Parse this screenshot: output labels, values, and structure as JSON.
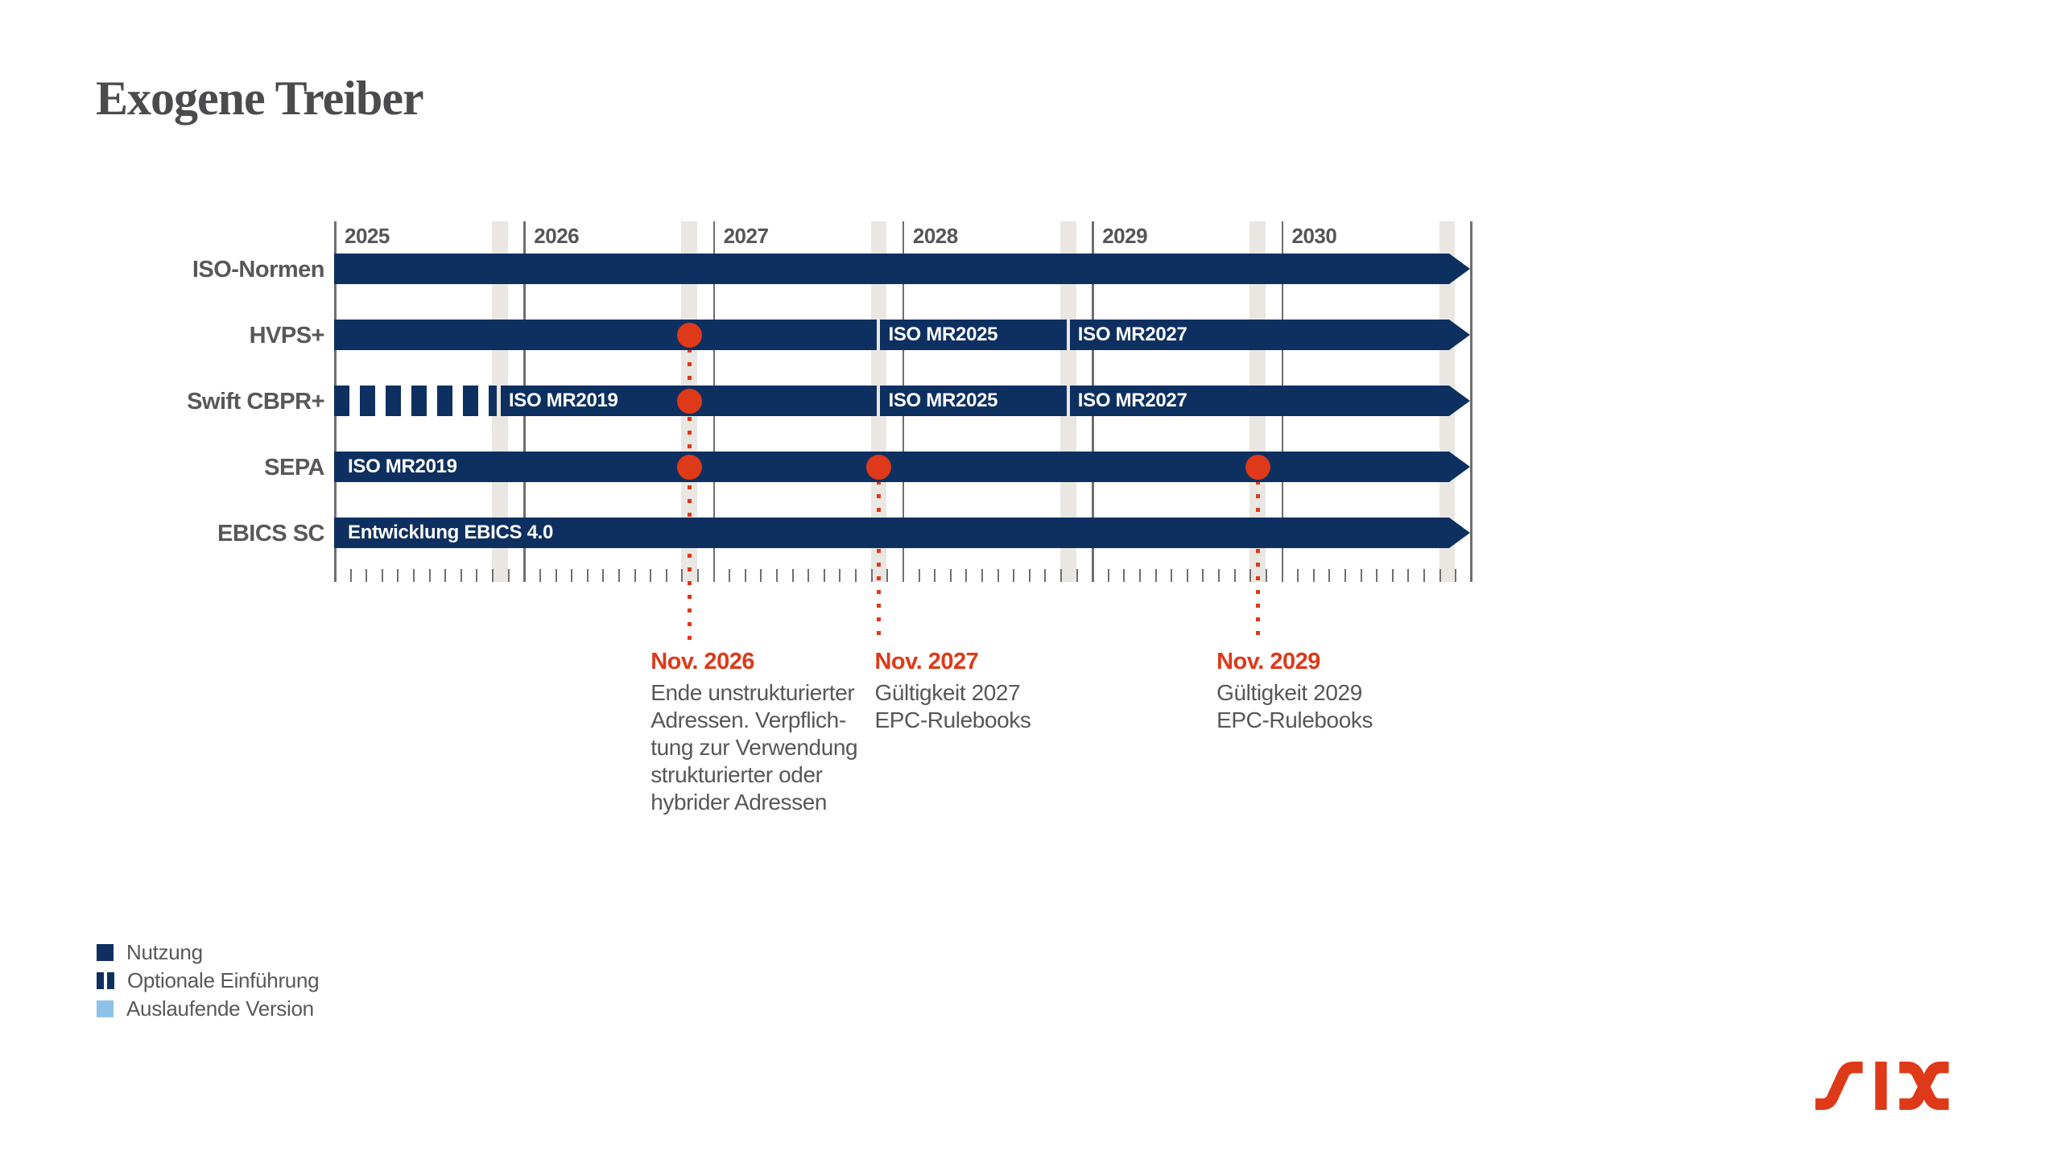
{
  "title": "Exogene Treiber",
  "colors": {
    "navy": "#0e3060",
    "red": "#de3919",
    "light_blue": "#8ec2e8",
    "band_gray": "#eae7e3",
    "line_gray": "#6f6f6f",
    "text_gray": "#58585a",
    "title_gray": "#4b4b4d"
  },
  "chart_data": {
    "type": "timeline",
    "years": [
      "2025",
      "2026",
      "2027",
      "2028",
      "2029",
      "2030"
    ],
    "rows": [
      {
        "label": "ISO-Normen",
        "segments": [
          {
            "style": "solid",
            "from": "2025-01",
            "to": "end",
            "label": ""
          }
        ],
        "dots": []
      },
      {
        "label": "HVPS+",
        "segments": [
          {
            "style": "solid",
            "from": "2025-01",
            "to": "2027-11",
            "label": ""
          },
          {
            "style": "solid",
            "from": "2027-11",
            "to": "2028-11",
            "label": "ISO MR2025"
          },
          {
            "style": "solid",
            "from": "2028-11",
            "to": "end",
            "label": "ISO MR2027"
          }
        ],
        "dots": [
          "2026-11"
        ]
      },
      {
        "label": "Swift CBPR+",
        "segments": [
          {
            "style": "dashed",
            "from": "2025-01",
            "to": "2025-11",
            "label": ""
          },
          {
            "style": "solid",
            "from": "2025-11",
            "to": "2027-11",
            "label": "ISO MR2019"
          },
          {
            "style": "solid",
            "from": "2027-11",
            "to": "2028-11",
            "label": "ISO MR2025"
          },
          {
            "style": "solid",
            "from": "2028-11",
            "to": "end",
            "label": "ISO MR2027"
          }
        ],
        "dots": [
          "2026-11"
        ]
      },
      {
        "label": "SEPA",
        "segments": [
          {
            "style": "solid",
            "from": "2025-01",
            "to": "end",
            "label": "ISO MR2019"
          }
        ],
        "dots": [
          "2026-11",
          "2027-11",
          "2029-11"
        ]
      },
      {
        "label": "EBICS SC",
        "segments": [
          {
            "style": "solid",
            "from": "2025-01",
            "to": "end",
            "label": "Entwicklung EBICS 4.0"
          }
        ],
        "dots": []
      }
    ],
    "annotations": [
      {
        "month": "2026-11",
        "heading": "Nov. 2026",
        "lines": [
          "Ende unstrukturierter",
          "Adressen. Verpflich-",
          "tung zur Verwendung",
          "strukturierter oder",
          "hybrider Adressen"
        ]
      },
      {
        "month": "2027-11",
        "heading": "Nov. 2027",
        "lines": [
          "Gültigkeit 2027",
          "EPC-Rulebooks"
        ]
      },
      {
        "month": "2029-11",
        "heading": "Nov. 2029",
        "lines": [
          "Gültigkeit 2029",
          "EPC-Rulebooks"
        ]
      }
    ]
  },
  "legend": {
    "items": [
      {
        "swatch": "solid",
        "label": "Nutzung"
      },
      {
        "swatch": "split",
        "label": "Optionale Einführung"
      },
      {
        "swatch": "outgoing",
        "label": "Auslaufende Version"
      }
    ]
  },
  "logo": {
    "name": "SIX"
  }
}
